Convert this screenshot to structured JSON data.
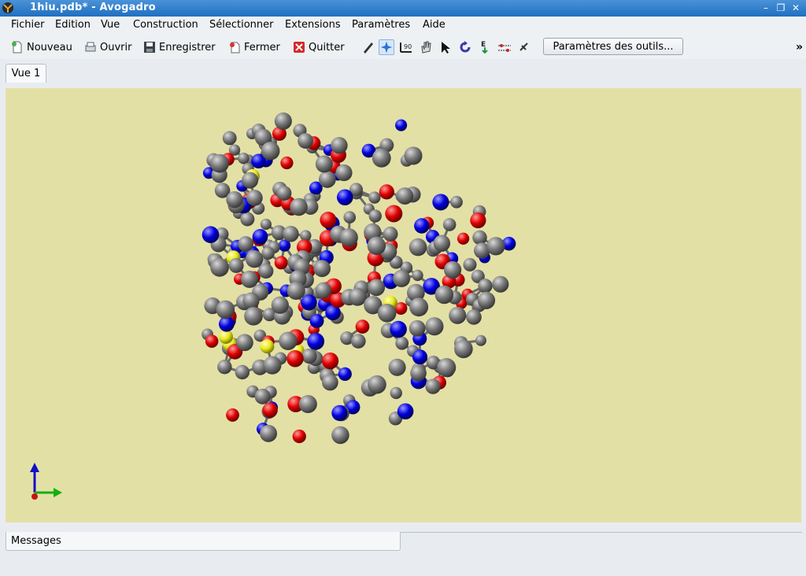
{
  "window": {
    "title": "1hiu.pdb* - Avogadro"
  },
  "menubar": {
    "items": [
      {
        "label": "Fichier"
      },
      {
        "label": "Edition"
      },
      {
        "label": "Vue"
      },
      {
        "label": "Construction"
      },
      {
        "label": "Sélectionner"
      },
      {
        "label": "Extensions"
      },
      {
        "label": "Paramètres"
      },
      {
        "label": "Aide"
      }
    ]
  },
  "toolbar": {
    "new_label": "Nouveau",
    "open_label": "Ouvrir",
    "save_label": "Enregistrer",
    "close_label": "Fermer",
    "quit_label": "Quitter",
    "tool_settings_label": "Paramètres des outils...",
    "overflow_glyph": "»"
  },
  "tabs": [
    {
      "label": "Vue 1"
    }
  ],
  "bottom_panel": {
    "messages_label": "Messages"
  },
  "colors": {
    "viewport_bg": "#e3e0a6",
    "carbon": "#6f6f6f",
    "oxygen": "#e00000",
    "nitrogen": "#0000e0",
    "sulfur": "#e8e820",
    "titlebar": "#1f6fc0"
  }
}
